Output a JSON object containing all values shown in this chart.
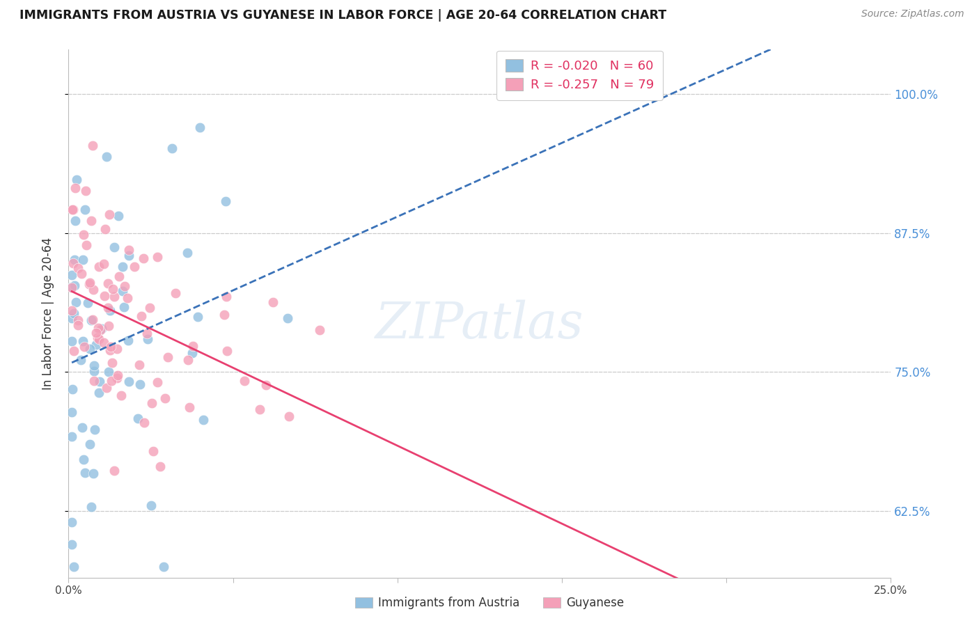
{
  "title": "IMMIGRANTS FROM AUSTRIA VS GUYANESE IN LABOR FORCE | AGE 20-64 CORRELATION CHART",
  "source": "Source: ZipAtlas.com",
  "ylabel": "In Labor Force | Age 20-64",
  "ytick_labels": [
    "62.5%",
    "75.0%",
    "87.5%",
    "100.0%"
  ],
  "ytick_values": [
    0.625,
    0.75,
    0.875,
    1.0
  ],
  "xlim": [
    0.0,
    0.25
  ],
  "ylim": [
    0.565,
    1.04
  ],
  "austria_color": "#92c0e0",
  "guyanese_color": "#f4a0b8",
  "austria_line_color": "#3a72b8",
  "guyanese_line_color": "#e84070",
  "watermark": "ZIPatlas",
  "austria_R": -0.02,
  "austria_N": 60,
  "guyanese_R": -0.257,
  "guyanese_N": 79,
  "grid_color": "#cccccc",
  "right_axis_color": "#4a90d8",
  "bottom_label_left": "Immigrants from Austria",
  "bottom_label_right": "Guyanese",
  "legend_R1": "R = -0.020",
  "legend_N1": "N = 60",
  "legend_R2": "R = -0.257",
  "legend_N2": "N = 79"
}
